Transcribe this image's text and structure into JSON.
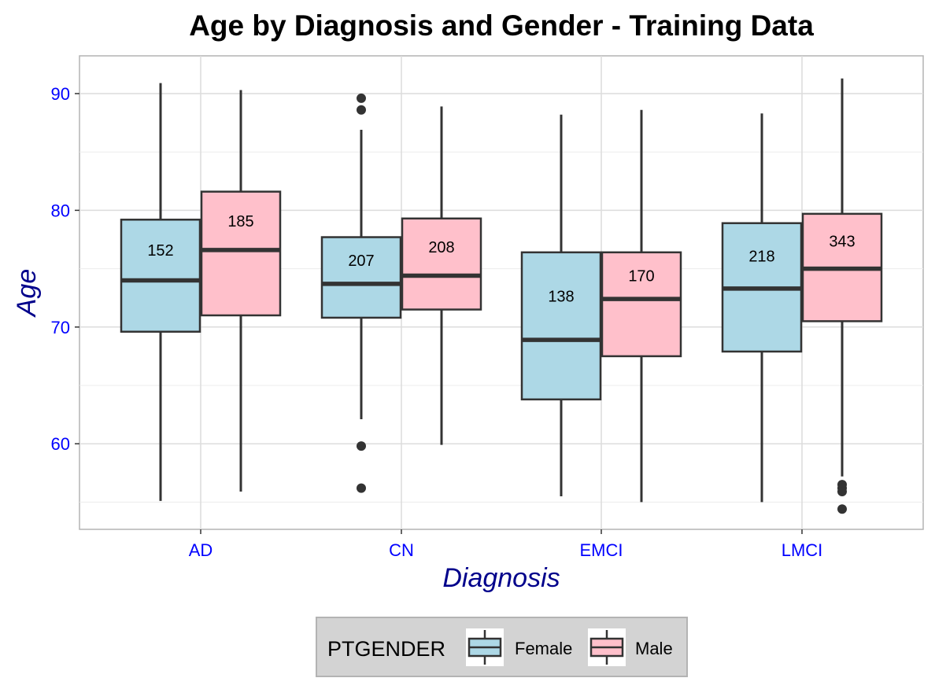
{
  "chart_data": {
    "type": "boxplot",
    "title": "Age by Diagnosis and Gender - Training Data",
    "xlabel": "Diagnosis",
    "ylabel": "Age",
    "categories": [
      "AD",
      "CN",
      "EMCI",
      "LMCI"
    ],
    "ylim": [
      52.5,
      93.2
    ],
    "yticks": [
      60,
      70,
      80,
      90
    ],
    "grid": true,
    "legend": {
      "title": "PTGENDER",
      "placement": "bottom",
      "entries": [
        "Female",
        "Male"
      ]
    },
    "colors": {
      "Female": "#add8e6",
      "Male": "#ffc0cb",
      "box_stroke": "#333333",
      "axis_text": "#0000ff",
      "axis_title": "#00008b",
      "legend_bg": "#d3d3d3",
      "grid": "#dcdcdc"
    },
    "series": [
      {
        "name": "Female",
        "boxes": [
          {
            "category": "AD",
            "whisker_low": 55.1,
            "q1": 69.6,
            "median": 74.0,
            "q3": 79.2,
            "whisker_high": 90.9,
            "outliers": [],
            "count": "152"
          },
          {
            "category": "CN",
            "whisker_low": 62.1,
            "q1": 70.8,
            "median": 73.7,
            "q3": 77.7,
            "whisker_high": 86.9,
            "outliers": [
              59.8,
              56.2,
              88.6,
              89.6
            ],
            "count": "207"
          },
          {
            "category": "EMCI",
            "whisker_low": 55.5,
            "q1": 63.8,
            "median": 68.9,
            "q3": 76.4,
            "whisker_high": 88.2,
            "outliers": [],
            "count": "138"
          },
          {
            "category": "LMCI",
            "whisker_low": 55.0,
            "q1": 67.9,
            "median": 73.3,
            "q3": 78.9,
            "whisker_high": 88.3,
            "outliers": [],
            "count": "218"
          }
        ]
      },
      {
        "name": "Male",
        "boxes": [
          {
            "category": "AD",
            "whisker_low": 55.9,
            "q1": 71.0,
            "median": 76.6,
            "q3": 81.6,
            "whisker_high": 90.3,
            "outliers": [],
            "count": "185"
          },
          {
            "category": "CN",
            "whisker_low": 59.9,
            "q1": 71.5,
            "median": 74.4,
            "q3": 79.3,
            "whisker_high": 88.9,
            "outliers": [],
            "count": "208"
          },
          {
            "category": "EMCI",
            "whisker_low": 55.0,
            "q1": 67.5,
            "median": 72.4,
            "q3": 76.4,
            "whisker_high": 88.6,
            "outliers": [],
            "count": "170"
          },
          {
            "category": "LMCI",
            "whisker_low": 57.2,
            "q1": 70.5,
            "median": 75.0,
            "q3": 79.7,
            "whisker_high": 91.3,
            "outliers": [
              56.5,
              56.2,
              55.9,
              54.4
            ],
            "count": "343"
          }
        ]
      }
    ]
  }
}
